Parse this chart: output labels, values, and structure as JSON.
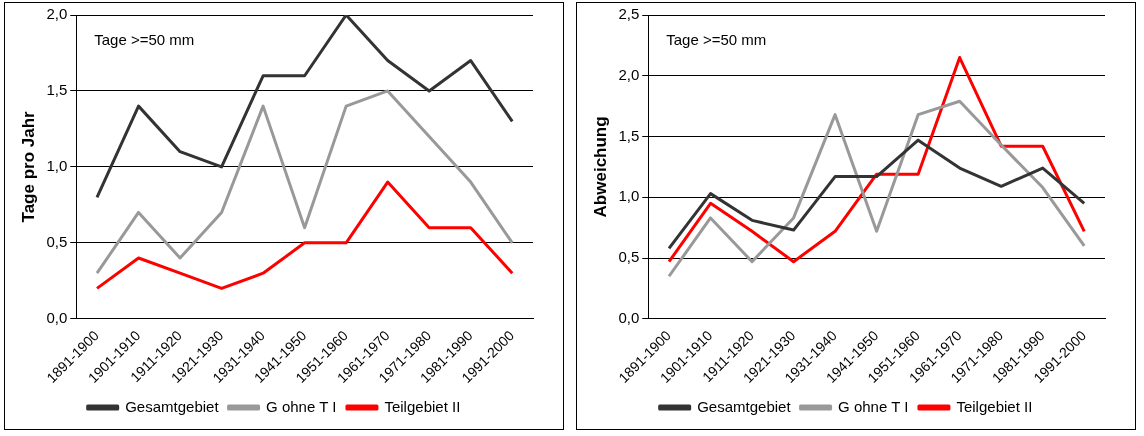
{
  "chart_data": [
    {
      "type": "line",
      "ylabel": "Tage pro Jahr",
      "annotations": [
        "Tage >=50 mm"
      ],
      "categories": [
        "1891-1900",
        "1901-1910",
        "1911-1920",
        "1921-1930",
        "1931-1940",
        "1941-1950",
        "1951-1960",
        "1961-1970",
        "1971-1980",
        "1981-1990",
        "1991-2000"
      ],
      "series": [
        {
          "name": "Gesamtgebiet",
          "color": "#333333",
          "values": [
            0.8,
            1.4,
            1.1,
            1.0,
            1.6,
            1.6,
            2.0,
            1.7,
            1.5,
            1.7,
            1.3
          ]
        },
        {
          "name": "G ohne T I",
          "color": "#999999",
          "values": [
            0.3,
            0.7,
            0.4,
            0.7,
            1.4,
            0.6,
            1.4,
            1.5,
            1.2,
            0.9,
            0.5
          ]
        },
        {
          "name": "Teilgebiet II",
          "color": "#ff0000",
          "values": [
            0.2,
            0.4,
            0.3,
            0.2,
            0.3,
            0.5,
            0.5,
            0.9,
            0.6,
            0.6,
            0.3
          ]
        }
      ],
      "ylim": [
        0,
        2
      ],
      "yticks": [
        {
          "value": 0,
          "label": "0,0"
        },
        {
          "value": 0.5,
          "label": "0,5"
        },
        {
          "value": 1,
          "label": "1,0"
        },
        {
          "value": 1.5,
          "label": "1,5"
        },
        {
          "value": 2,
          "label": "2,0"
        }
      ],
      "grid": "y",
      "legend": "bottom",
      "marker": "none",
      "line_style": "solid"
    },
    {
      "type": "line",
      "ylabel": "Abweichung",
      "annotations": [
        "Tage >=50 mm"
      ],
      "categories": [
        "1891-1900",
        "1901-1910",
        "1911-1920",
        "1921-1930",
        "1931-1940",
        "1941-1950",
        "1951-1960",
        "1961-1970",
        "1971-1980",
        "1981-1990",
        "1991-2000"
      ],
      "series": [
        {
          "name": "Gesamtgebiet",
          "color": "#333333",
          "values": [
            0.58,
            1.03,
            0.81,
            0.73,
            1.17,
            1.17,
            1.47,
            1.24,
            1.09,
            1.24,
            0.95
          ]
        },
        {
          "name": "G ohne T I",
          "color": "#999999",
          "values": [
            0.35,
            0.83,
            0.47,
            0.83,
            1.68,
            0.72,
            1.68,
            1.79,
            1.43,
            1.08,
            0.6
          ]
        },
        {
          "name": "Teilgebiet II",
          "color": "#ff0000",
          "values": [
            0.47,
            0.95,
            0.72,
            0.47,
            0.72,
            1.19,
            1.19,
            2.15,
            1.42,
            1.42,
            0.72
          ]
        }
      ],
      "ylim": [
        0,
        2.5
      ],
      "yticks": [
        {
          "value": 0,
          "label": "0,0"
        },
        {
          "value": 0.5,
          "label": "0,5"
        },
        {
          "value": 1,
          "label": "1,0"
        },
        {
          "value": 1.5,
          "label": "1,5"
        },
        {
          "value": 2,
          "label": "2,0"
        },
        {
          "value": 2.5,
          "label": "2,5"
        }
      ],
      "grid": "y",
      "legend": "bottom",
      "marker": "none",
      "line_style": "solid"
    }
  ]
}
